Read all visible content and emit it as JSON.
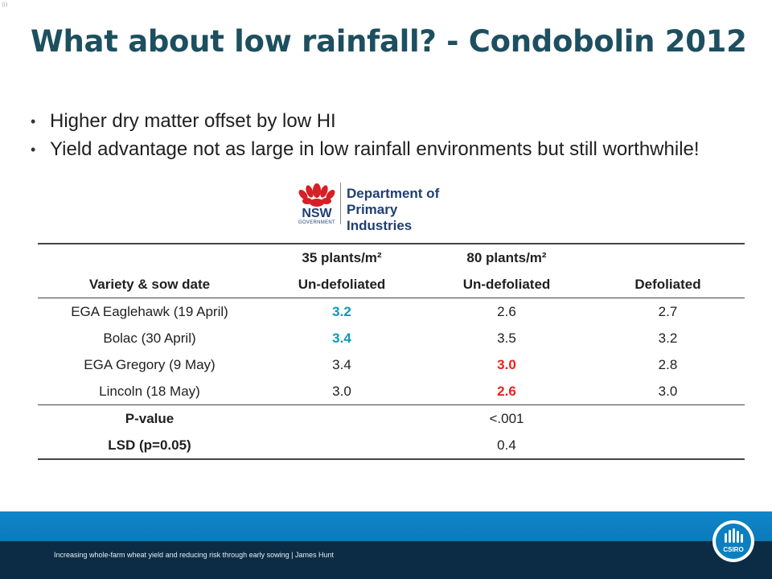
{
  "slide": {
    "corner_mark": "(i)",
    "title": "What about low rainfall? - Condobolin 2012",
    "bullets": [
      "Higher dry matter offset by low HI",
      "Yield advantage not as large in low rainfall environments but still worthwhile!"
    ]
  },
  "logo_nsw": {
    "line1": "Department of",
    "line2": "Primary Industries",
    "nsw": "NSW",
    "gov": "GOVERNMENT"
  },
  "table": {
    "header_row1": [
      "",
      "35 plants/m²",
      "80 plants/m²",
      ""
    ],
    "header_row2": [
      "Variety & sow date",
      "Un-defoliated",
      "Un-defoliated",
      "Defoliated"
    ],
    "rows": [
      [
        "EGA Eaglehawk (19 April)",
        "3.2",
        "2.6",
        "2.7"
      ],
      [
        "Bolac (30 April)",
        "3.4",
        "3.5",
        "3.2"
      ],
      [
        "EGA Gregory (9 May)",
        "3.4",
        "3.0",
        "2.8"
      ],
      [
        "Lincoln (18 May)",
        "3.0",
        "2.6",
        "3.0"
      ]
    ],
    "pvalue_label": "P-value",
    "pvalue": "<.001",
    "lsd_label": "LSD (p=0.05)",
    "lsd": "0.4",
    "colors": {
      "highlight_teal": "#0a9cb3",
      "highlight_red": "#e8231c"
    }
  },
  "footer": {
    "text": "Increasing whole-farm wheat yield and reducing risk through early sowing | James Hunt",
    "logo_label": "CSIRO"
  }
}
